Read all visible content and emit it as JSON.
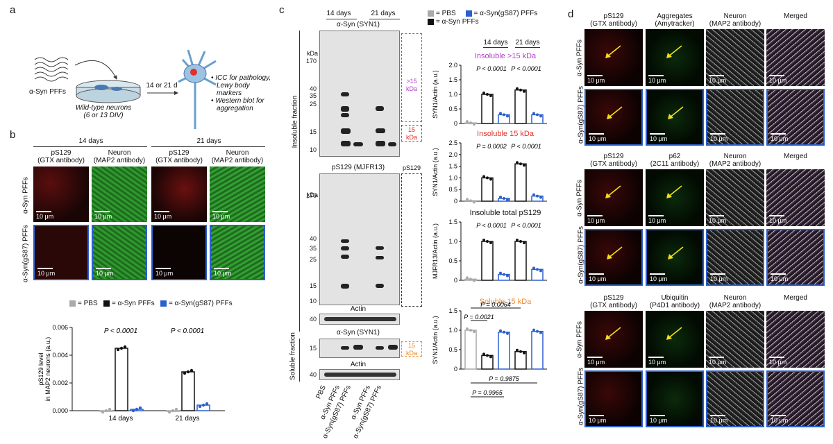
{
  "panels": {
    "a": "a",
    "b": "b",
    "c": "c",
    "d": "d"
  },
  "a": {
    "pff_label": "α-Syn PFFs",
    "dish_label1": "Wild-type neurons",
    "dish_label2": "(6 or 13 DIV)",
    "arrow_label": "14 or 21 d",
    "bullet1a": "ICC for pathology,",
    "bullet1b": "Lewy body",
    "bullet1c": "markers",
    "bullet2a": "Western blot for",
    "bullet2b": "aggregation"
  },
  "b": {
    "time1": "14 days",
    "time2": "21 days",
    "col1a": "pS129",
    "col1b": "(GTX antibody)",
    "col2a": "Neuron",
    "col2b": "(MAP2 antibody)",
    "row1": "α-Syn PFFs",
    "row2": "α-Syn(gS87) PFFs",
    "scale": "10 μm",
    "legend_pbs": "= PBS",
    "legend_syn": "= α-Syn PFFs",
    "legend_gs87": "= α-Syn(gS87) PFFs",
    "p1": "P < 0.0001",
    "p2": "P < 0.0001"
  },
  "c": {
    "time1": "14 days",
    "time2": "21 days",
    "blot1_title": "α-Syn (SYN1)",
    "blot2_title": "pS129 (MJFR13)",
    "actin": "Actin",
    "blot3_title": "α-Syn (SYN1)",
    "kda": "kDa",
    "mw1": [
      "170",
      "40",
      "35",
      "25",
      "15",
      "10"
    ],
    "mw2": [
      "170",
      "40",
      "35",
      "25",
      "15",
      "10"
    ],
    "mw_actin": "40",
    "mw_sol": "15",
    "box_gt15": ">15 kDa",
    "box_15": "15 kDa",
    "box_ps129": "pS129",
    "box_sol15": "15 kDa",
    "insoluble": "Insoluble fraction",
    "soluble": "Soluble fraction",
    "lanes": [
      "PBS",
      "α-Syn PFFs",
      "α-Syn(gS87) PFFs",
      "α-Syn PFFs",
      "α-Syn(gS87) PFFs"
    ],
    "legend_pbs": "= PBS",
    "legend_syn": "= α-Syn PFFs",
    "legend_gs87": "= α-Syn(gS87) PFFs",
    "chart_titles": [
      "Insoluble >15 kDa",
      "Insoluble 15 kDa",
      "Insoluble total pS129",
      "Soluble 15 kDa"
    ],
    "chart_title_colors": [
      "#b23fc9",
      "#e0302b",
      "#111111",
      "#f08a2a"
    ],
    "chart_ylabels": [
      "SYN1/Actin (a.u.)",
      "SYN1/Actin (a.u.)",
      "MJFR13/Actin (a.u.)",
      "SYN1/Actin (a.u.)"
    ],
    "p_top": [
      [
        "P < 0.0001",
        "P < 0.0001"
      ],
      [
        "P = 0.0002",
        "P < 0.0001"
      ],
      [
        "P < 0.0001",
        "P < 0.0001"
      ]
    ],
    "p_sol": [
      "P = 0.0021",
      "P = 0.0064",
      "P = 0.9875",
      "P = 0.9965"
    ]
  },
  "d": {
    "group1": {
      "c1a": "pS129",
      "c1b": "(GTX antibody)",
      "c2a": "Aggregates",
      "c2b": "(Amytracker)",
      "c3a": "Neuron",
      "c3b": "(MAP2 antibody)",
      "c4": "Merged"
    },
    "group2": {
      "c1a": "pS129",
      "c1b": "(GTX antibody)",
      "c2a": "p62",
      "c2b": "(2C11 antibody)",
      "c3a": "Neuron",
      "c3b": "(MAP2 antibody)",
      "c4": "Merged"
    },
    "group3": {
      "c1a": "pS129",
      "c1b": "(GTX antibody)",
      "c2a": "Ubiquitin",
      "c2b": "(P4D1 antibody)",
      "c3a": "Neuron",
      "c3b": "(MAP2 antibody)",
      "c4": "Merged"
    },
    "row1": "α-Syn PFFs",
    "row2": "α-Syn(gS87) PFFs",
    "scale": "10 μm"
  },
  "colors": {
    "pbs": "#aaaaaa",
    "syn": "#111111",
    "gs87": "#2a5fcf"
  },
  "chart_data": [
    {
      "type": "bar",
      "title": "",
      "xlabel": "",
      "ylabel": "pS129 level in MAP2 neurons (a.u.)",
      "categories": [
        "14 days",
        "21 days"
      ],
      "series": [
        {
          "name": "PBS",
          "values": [
            0.0,
            0.0
          ]
        },
        {
          "name": "α-Syn PFFs",
          "values": [
            0.0045,
            0.0028
          ]
        },
        {
          "name": "α-Syn(gS87) PFFs",
          "values": [
            0.0001,
            0.0004
          ]
        }
      ],
      "ylim": [
        0,
        0.006
      ],
      "yticks": [
        "0.000",
        "0.002",
        "0.004",
        "0.006"
      ]
    },
    {
      "type": "bar",
      "title": "Insoluble >15 kDa",
      "ylabel": "SYN1/Actin (a.u.)",
      "categories": [
        "PBS",
        "14 days α-Syn",
        "14 days gS87",
        "21 days α-Syn",
        "21 days gS87"
      ],
      "values": [
        0.02,
        1.0,
        0.3,
        1.15,
        0.3
      ],
      "ylim": [
        0,
        2.0
      ],
      "yticks": [
        "0",
        "0.5",
        "1.0",
        "1.5",
        "2.0"
      ]
    },
    {
      "type": "bar",
      "title": "Insoluble 15 kDa",
      "ylabel": "SYN1/Actin (a.u.)",
      "categories": [
        "PBS",
        "14 days α-Syn",
        "14 days gS87",
        "21 days α-Syn",
        "21 days gS87"
      ],
      "values": [
        0.02,
        1.0,
        0.12,
        1.6,
        0.22
      ],
      "ylim": [
        0,
        2.5
      ],
      "yticks": [
        "0",
        "0.5",
        "1.0",
        "1.5",
        "2.0",
        "2.5"
      ]
    },
    {
      "type": "bar",
      "title": "Insoluble total pS129",
      "ylabel": "MJFR13/Actin (a.u.)",
      "categories": [
        "PBS",
        "14 days α-Syn",
        "14 days gS87",
        "21 days α-Syn",
        "21 days gS87"
      ],
      "values": [
        0.03,
        1.0,
        0.15,
        1.0,
        0.28
      ],
      "ylim": [
        0,
        1.5
      ],
      "yticks": [
        "0",
        "0.5",
        "1.0",
        "1.5"
      ]
    },
    {
      "type": "bar",
      "title": "Soluble 15 kDa",
      "ylabel": "SYN1/Actin (a.u.)",
      "categories": [
        "PBS",
        "14 days α-Syn",
        "14 days gS87",
        "21 days α-Syn",
        "21 days gS87"
      ],
      "values": [
        1.0,
        0.35,
        0.95,
        0.45,
        0.97
      ],
      "ylim": [
        0,
        1.5
      ],
      "yticks": [
        "0",
        "0.5",
        "1.0",
        "1.5"
      ]
    }
  ]
}
